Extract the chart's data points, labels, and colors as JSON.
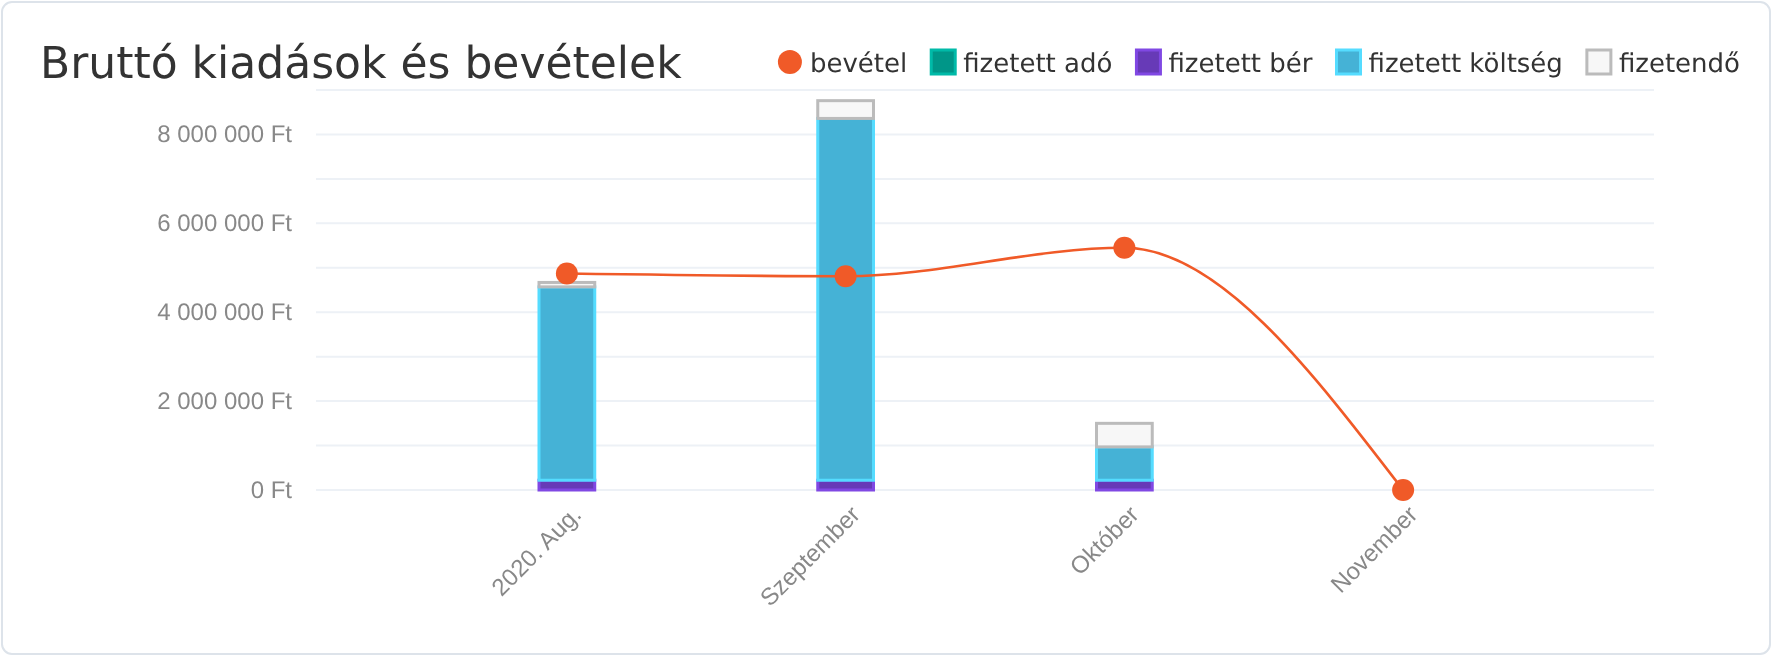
{
  "chart_data": {
    "type": "bar",
    "title": "Bruttó kiadások és bevételek",
    "categories": [
      "2020. Aug.",
      "Szeptember",
      "Október",
      "November"
    ],
    "stacked": true,
    "series": [
      {
        "name": "bevétel",
        "type": "line",
        "color": "#f05a28",
        "values": [
          4870000,
          4810000,
          5450000,
          0
        ],
        "marker": "circle"
      },
      {
        "name": "fizetett adó",
        "color": "#009688",
        "values": [
          0,
          0,
          0,
          0
        ]
      },
      {
        "name": "fizetett bér",
        "color": "#673ab7",
        "values": [
          220000,
          220000,
          220000,
          0
        ]
      },
      {
        "name": "fizetett költség",
        "color": "#45b2d6",
        "values": [
          4350000,
          8140000,
          750000,
          0
        ]
      },
      {
        "name": "fizetendő",
        "color": "#f7f7f7",
        "values": [
          100000,
          400000,
          530000,
          0
        ]
      }
    ],
    "ylim": [
      0,
      9000000
    ],
    "yticks": [
      {
        "value": 0,
        "label": "0 Ft"
      },
      {
        "value": 1000000,
        "label": null
      },
      {
        "value": 2000000,
        "label": "2 000 000 Ft"
      },
      {
        "value": 3000000,
        "label": null
      },
      {
        "value": 4000000,
        "label": "4 000 000 Ft"
      },
      {
        "value": 5000000,
        "label": null
      },
      {
        "value": 6000000,
        "label": "6 000 000 Ft"
      },
      {
        "value": 7000000,
        "label": null
      },
      {
        "value": 8000000,
        "label": "8 000 000 Ft"
      },
      {
        "value": 9000000,
        "label": null
      }
    ],
    "grid": "y",
    "legend": "top right"
  }
}
